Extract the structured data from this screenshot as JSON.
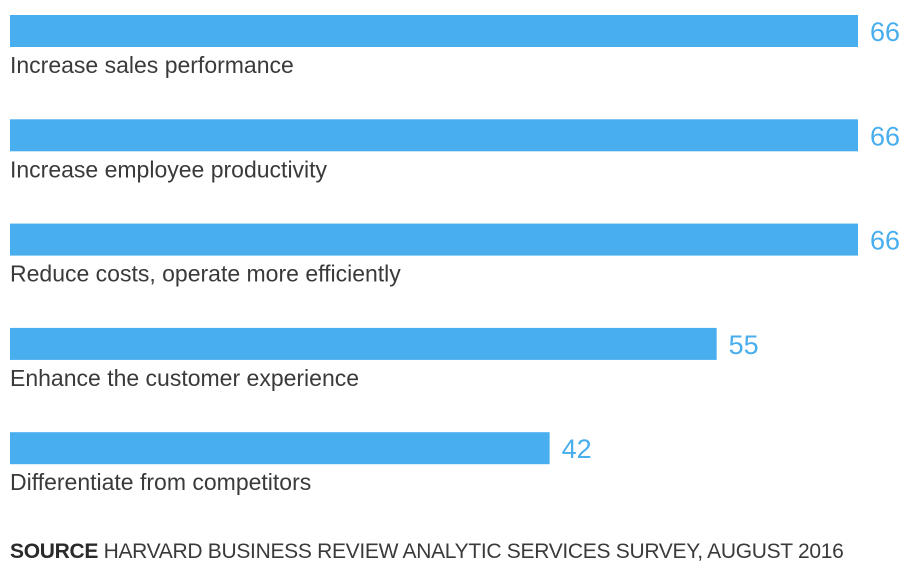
{
  "chart_data": {
    "type": "bar",
    "orientation": "horizontal",
    "categories": [
      "Increase sales performance",
      "Increase employee productivity",
      "Reduce costs, operate more efficiently",
      "Enhance the customer experience",
      "Differentiate from competitors"
    ],
    "values": [
      66,
      66,
      66,
      55,
      42
    ],
    "title": "",
    "xlabel": "",
    "ylabel": "",
    "xlim": [
      0,
      66
    ],
    "grid": false,
    "legend": "none",
    "bar_color": "#48aeee",
    "value_label_color": "#48aeee"
  },
  "source": {
    "prefix": "SOURCE",
    "text": "HARVARD BUSINESS REVIEW ANALYTIC SERVICES SURVEY, AUGUST 2016"
  }
}
